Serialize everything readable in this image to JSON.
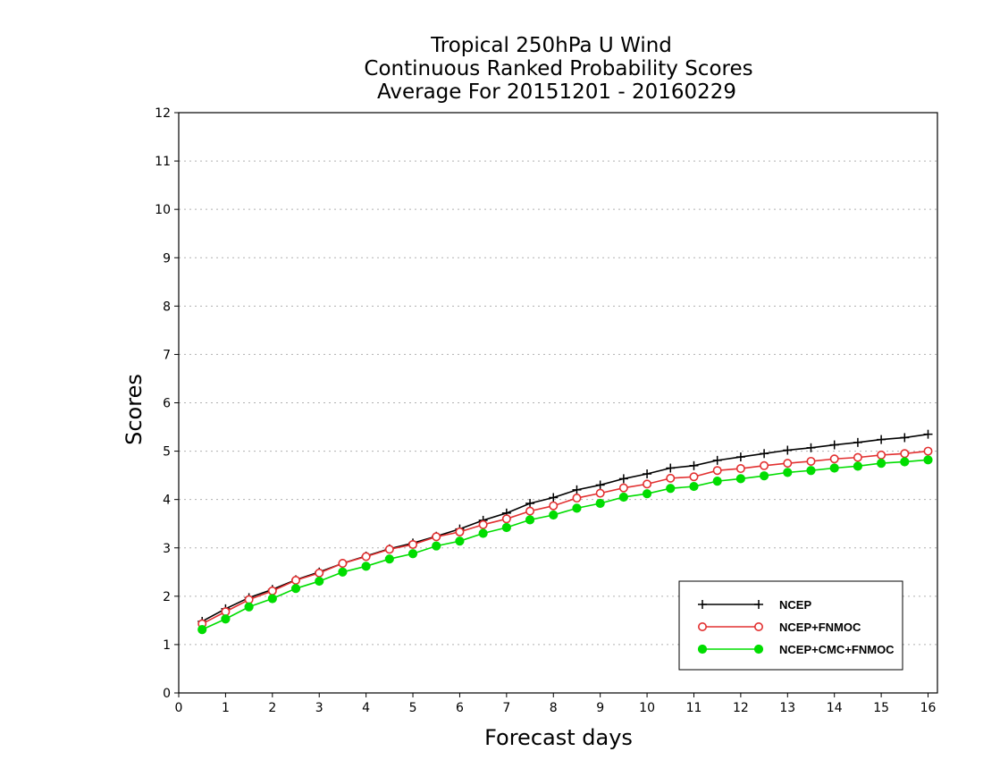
{
  "chart_data": {
    "type": "line",
    "title": [
      "Tropical 250hPa U Wind",
      "Continuous Ranked Probability Scores",
      "Average For 20151201 - 20160229"
    ],
    "xlabel": "Forecast days",
    "ylabel": "Scores",
    "xlim": [
      0,
      16.2
    ],
    "ylim": [
      0,
      12
    ],
    "xticks": [
      0,
      1,
      2,
      3,
      4,
      5,
      6,
      7,
      8,
      9,
      10,
      11,
      12,
      13,
      14,
      15,
      16
    ],
    "yticks": [
      0,
      1,
      2,
      3,
      4,
      5,
      6,
      7,
      8,
      9,
      10,
      11,
      12
    ],
    "grid": true,
    "legend_position": "bottom-right",
    "x": [
      0.5,
      1,
      1.5,
      2,
      2.5,
      3,
      3.5,
      4,
      4.5,
      5,
      5.5,
      6,
      6.5,
      7,
      7.5,
      8,
      8.5,
      9,
      9.5,
      10,
      10.5,
      11,
      11.5,
      12,
      12.5,
      13,
      13.5,
      14,
      14.5,
      15,
      15.5,
      16
    ],
    "series": [
      {
        "name": "NCEP",
        "color": "#000000",
        "marker": "plus",
        "values": [
          1.48,
          1.74,
          1.97,
          2.14,
          2.34,
          2.5,
          2.68,
          2.83,
          2.98,
          3.1,
          3.24,
          3.39,
          3.57,
          3.72,
          3.92,
          4.04,
          4.2,
          4.3,
          4.43,
          4.53,
          4.65,
          4.7,
          4.81,
          4.88,
          4.95,
          5.02,
          5.07,
          5.13,
          5.18,
          5.24,
          5.28,
          5.35
        ]
      },
      {
        "name": "NCEP+FNMOC",
        "color": "#e23030",
        "marker": "open-circle",
        "values": [
          1.43,
          1.68,
          1.93,
          2.11,
          2.33,
          2.48,
          2.68,
          2.82,
          2.97,
          3.07,
          3.23,
          3.33,
          3.48,
          3.6,
          3.76,
          3.87,
          4.03,
          4.13,
          4.24,
          4.32,
          4.44,
          4.47,
          4.6,
          4.64,
          4.7,
          4.75,
          4.79,
          4.84,
          4.87,
          4.92,
          4.95,
          5.0
        ]
      },
      {
        "name": "NCEP+CMC+FNMOC",
        "color": "#00dd00",
        "marker": "filled-circle",
        "values": [
          1.31,
          1.53,
          1.78,
          1.95,
          2.16,
          2.31,
          2.5,
          2.62,
          2.77,
          2.88,
          3.04,
          3.14,
          3.3,
          3.42,
          3.58,
          3.68,
          3.82,
          3.92,
          4.05,
          4.12,
          4.23,
          4.27,
          4.38,
          4.43,
          4.49,
          4.56,
          4.6,
          4.65,
          4.69,
          4.75,
          4.78,
          4.82
        ]
      }
    ]
  }
}
